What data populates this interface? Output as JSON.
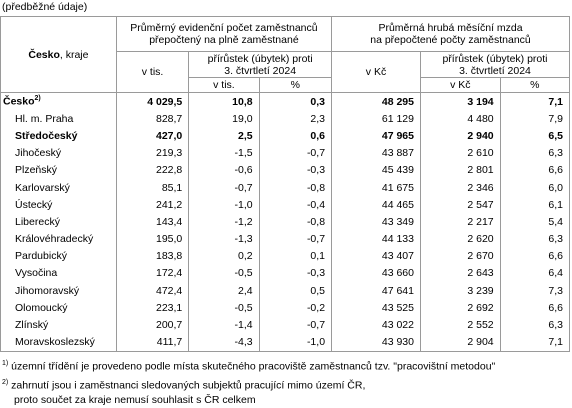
{
  "note": "(předběžné údaje)",
  "header": {
    "region_bold": "Česko",
    "region_rest": ", kraje",
    "group1": [
      "Průměrný evidenční počet zaměstnanců",
      "přepočtený na plně zaměstnané"
    ],
    "group1_change": [
      "přírůstek (úbytek) proti",
      "3. čtvrtletí 2024"
    ],
    "group1_unit": "v tis.",
    "group1_change_unit": "v tis.",
    "group1_change_pct": "%",
    "group2": [
      "Průměrná hrubá měsíční mzda",
      "na přepočtené počty zaměstnanců"
    ],
    "group2_change": [
      "přírůstek (úbytek) proti",
      "3. čtvrtletí 2024"
    ],
    "group2_unit": "v Kč",
    "group2_change_unit": "v Kč",
    "group2_change_pct": "%"
  },
  "rows": [
    {
      "name": "Česko",
      "sup": "2)",
      "bold": true,
      "cells": [
        "4 029,5",
        "10,8",
        "0,3",
        "48 295",
        "3 194",
        "7,1"
      ]
    },
    {
      "name": "Hl. m. Praha",
      "cells": [
        "828,7",
        "19,0",
        "2,3",
        "61 129",
        "4 480",
        "7,9"
      ]
    },
    {
      "name": "Středočeský",
      "bold": true,
      "cells": [
        "427,0",
        "2,5",
        "0,6",
        "47 965",
        "2 940",
        "6,5"
      ]
    },
    {
      "name": "Jihočeský",
      "cells": [
        "219,3",
        "-1,5",
        "-0,7",
        "43 887",
        "2 610",
        "6,3"
      ]
    },
    {
      "name": "Plzeňský",
      "cells": [
        "222,8",
        "-0,6",
        "-0,3",
        "45 439",
        "2 801",
        "6,6"
      ]
    },
    {
      "name": "Karlovarský",
      "cells": [
        "85,1",
        "-0,7",
        "-0,8",
        "41 675",
        "2 346",
        "6,0"
      ]
    },
    {
      "name": "Ústecký",
      "cells": [
        "241,2",
        "-1,0",
        "-0,4",
        "44 465",
        "2 547",
        "6,1"
      ]
    },
    {
      "name": "Liberecký",
      "cells": [
        "143,4",
        "-1,2",
        "-0,8",
        "43 349",
        "2 217",
        "5,4"
      ]
    },
    {
      "name": "Královéhradecký",
      "cells": [
        "195,0",
        "-1,3",
        "-0,7",
        "44 133",
        "2 620",
        "6,3"
      ]
    },
    {
      "name": "Pardubický",
      "cells": [
        "183,8",
        "0,2",
        "0,1",
        "43 407",
        "2 670",
        "6,6"
      ]
    },
    {
      "name": "Vysočina",
      "cells": [
        "172,4",
        "-0,5",
        "-0,3",
        "43 660",
        "2 643",
        "6,4"
      ]
    },
    {
      "name": "Jihomoravský",
      "cells": [
        "472,4",
        "2,4",
        "0,5",
        "47 641",
        "3 239",
        "7,3"
      ]
    },
    {
      "name": "Olomoucký",
      "cells": [
        "223,1",
        "-0,5",
        "-0,2",
        "43 525",
        "2 692",
        "6,6"
      ]
    },
    {
      "name": "Zlínský",
      "cells": [
        "200,7",
        "-1,4",
        "-0,7",
        "43 022",
        "2 552",
        "6,3"
      ]
    },
    {
      "name": "Moravskoslezský",
      "cells": [
        "411,7",
        "-4,3",
        "-1,0",
        "43 930",
        "2 904",
        "7,1"
      ]
    }
  ],
  "footnotes": [
    {
      "mark": "1)",
      "lines": [
        "územní třídění je provedeno podle místa skutečného pracoviště zaměstnanců tzv. \"pracovištní metodou\""
      ]
    },
    {
      "mark": "2)",
      "lines": [
        "zahrnutí jsou i zaměstnanci sledovaných subjektů pracující mimo území ČR,",
        "proto součet za kraje nemusí souhlasit s ČR celkem"
      ]
    }
  ]
}
